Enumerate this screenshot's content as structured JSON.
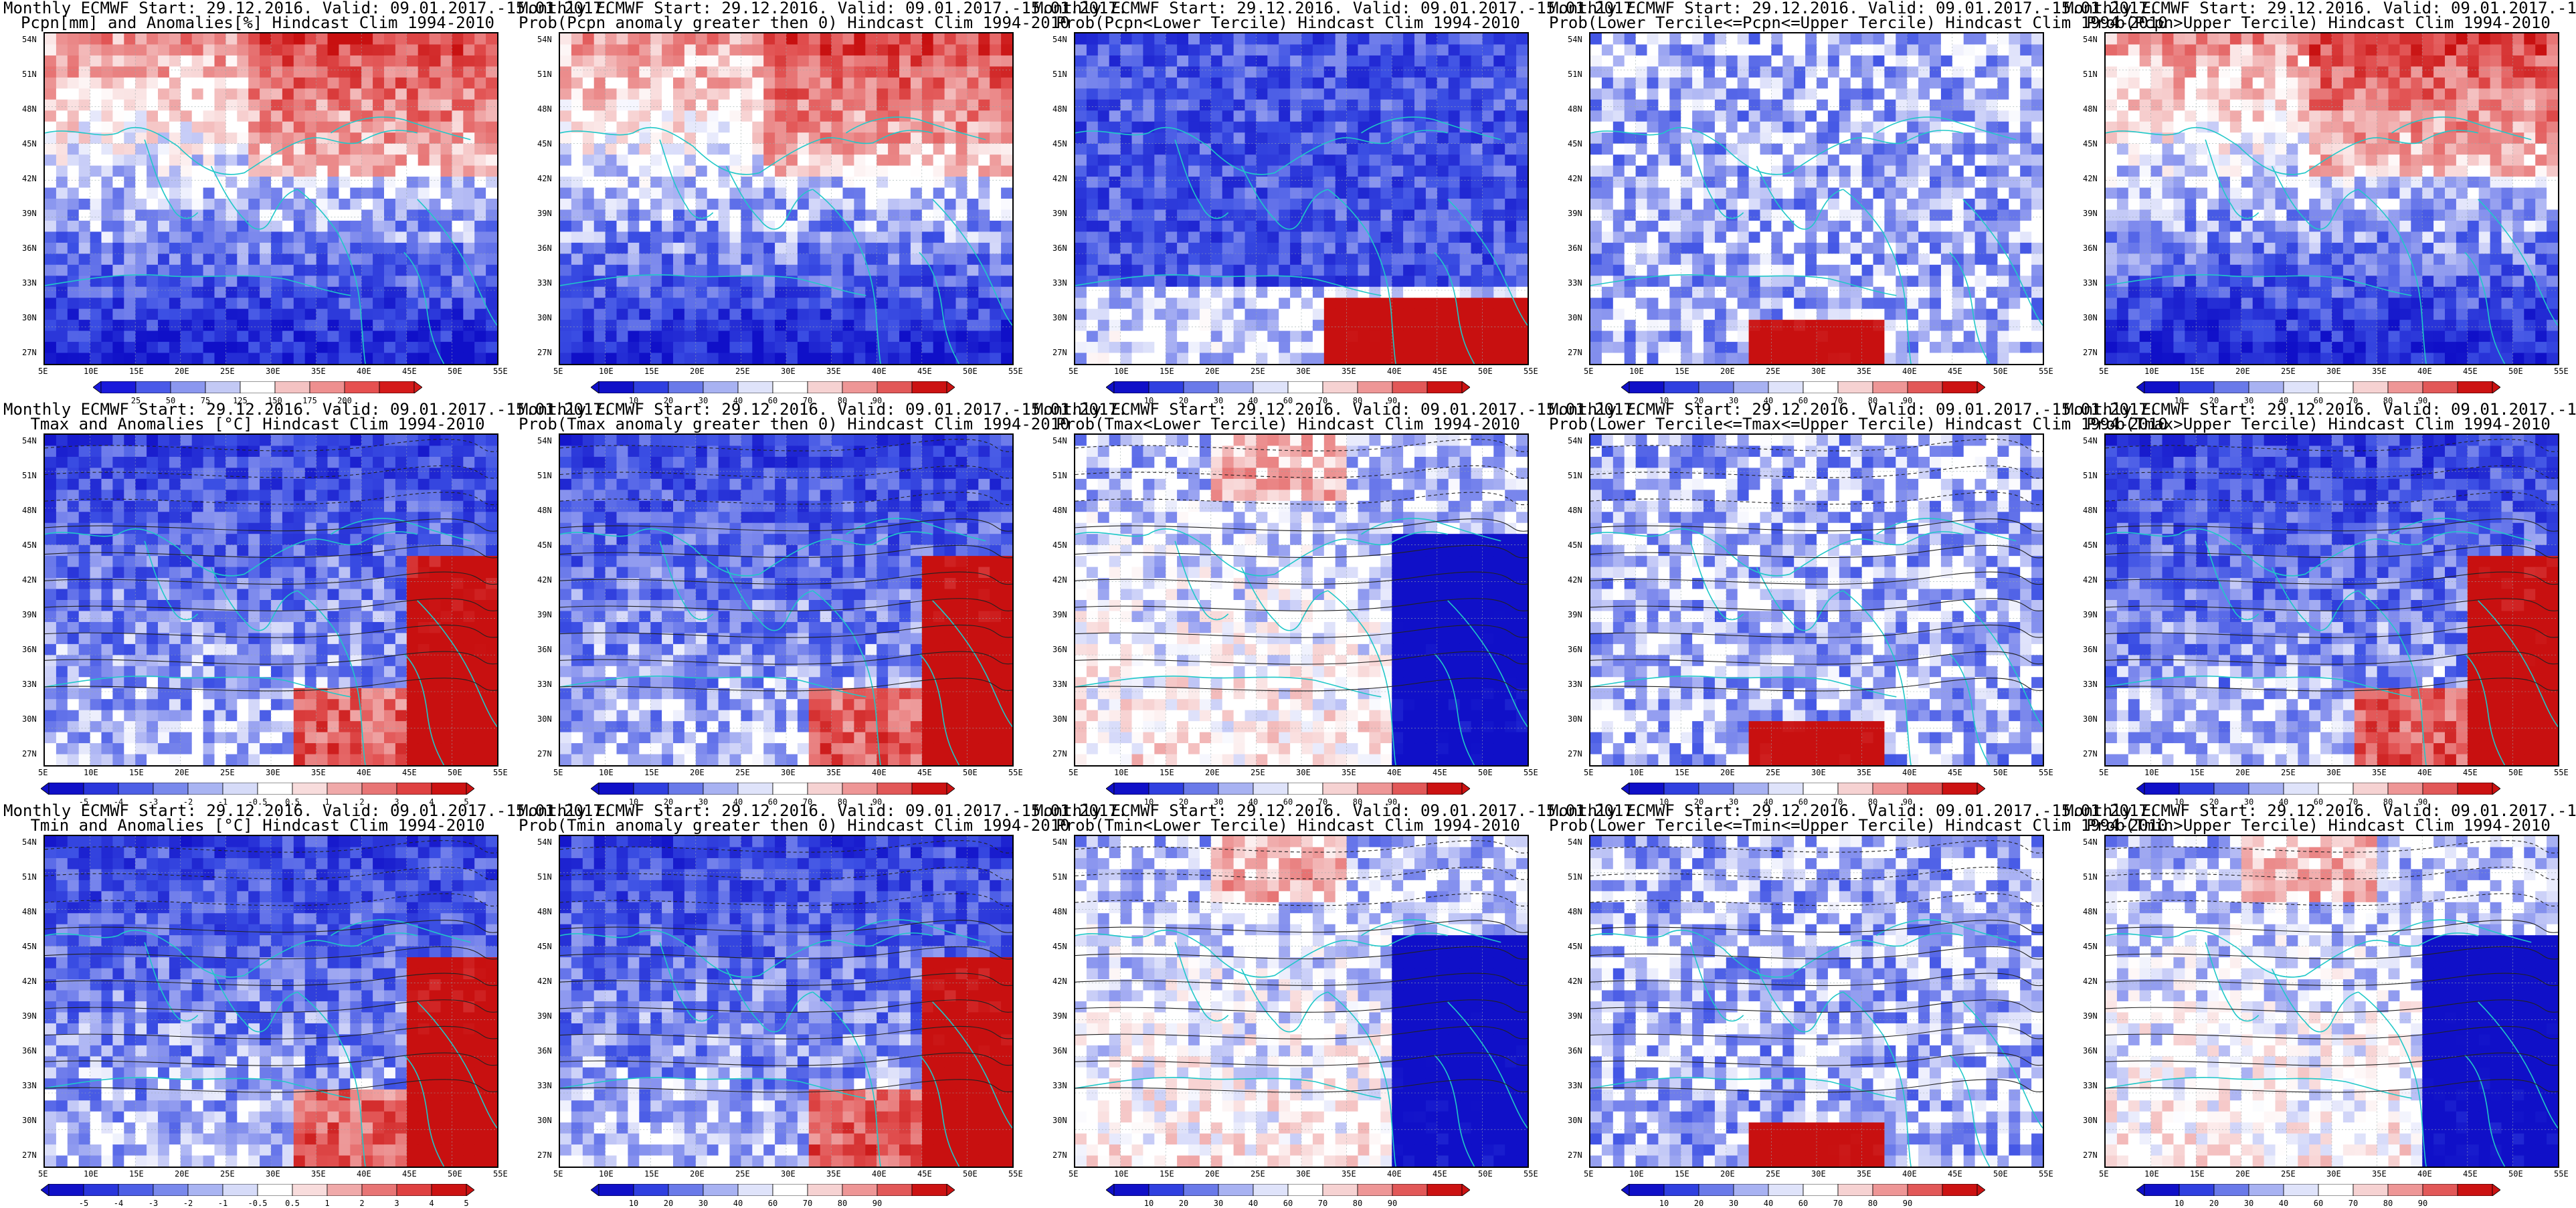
{
  "common": {
    "header": "Monthly ECMWF Start: 29.12.2016. Valid: 09.01.2017.-15.01.2017.",
    "lat_labels": [
      "54N",
      "51N",
      "48N",
      "45N",
      "42N",
      "39N",
      "36N",
      "33N",
      "30N",
      "27N"
    ],
    "lon_labels": [
      "5E",
      "10E",
      "15E",
      "20E",
      "25E",
      "30E",
      "35E",
      "40E",
      "45E",
      "50E",
      "55E"
    ]
  },
  "colorbars": {
    "pcpn_anom": {
      "labels": [
        "25",
        "50",
        "75",
        "125",
        "150",
        "175",
        "200"
      ],
      "colors": [
        "#1a1adb",
        "#4a5ae8",
        "#8b97ef",
        "#c3c9f5",
        "#ffffff",
        "#f4c3c3",
        "#ee8f8f",
        "#e65050",
        "#d41a1a"
      ]
    },
    "prob": {
      "labels": [
        "10",
        "20",
        "30",
        "40",
        "60",
        "70",
        "80",
        "90"
      ],
      "colors": [
        "#1010c8",
        "#3040e0",
        "#6a7ae9",
        "#a8b2f2",
        "#dfe3fa",
        "#ffffff",
        "#f6d2d2",
        "#ee9696",
        "#e25858",
        "#cc1212"
      ]
    },
    "temp_anom": {
      "labels": [
        "-5",
        "-4",
        "-3",
        "-2",
        "-1",
        "-0.5",
        "0.5",
        "1",
        "2",
        "3",
        "4",
        "5"
      ],
      "colors": [
        "#1010c8",
        "#2a36dc",
        "#4d5fe6",
        "#7989ec",
        "#a9b4f2",
        "#d6dbf8",
        "#ffffff",
        "#f8dcdc",
        "#f0a9a9",
        "#e87575",
        "#df4141",
        "#cc1212"
      ]
    }
  },
  "panels": [
    {
      "title": "Pcpn[mm] and Anomalies[%] Hindcast Clim 1994-2010",
      "colorbar": "pcpn_anom",
      "scheme": "wet"
    },
    {
      "title": "Prob(Pcpn anomaly greater then 0) Hindcast Clim 1994-2010",
      "colorbar": "prob",
      "scheme": "wet"
    },
    {
      "title": "Prob(Pcpn<Lower Tercile) Hindcast Clim 1994-2010",
      "colorbar": "prob",
      "scheme": "dry"
    },
    {
      "title": "Prob(Lower Tercile<=Pcpn<=Upper Tercile) Hindcast Clim 1994-2010",
      "colorbar": "prob",
      "scheme": "mid"
    },
    {
      "title": "Prob(Pcpn>Upper Tercile) Hindcast Clim 1994-2010",
      "colorbar": "prob",
      "scheme": "wet"
    },
    {
      "title": "Tmax and Anomalies [°C] Hindcast Clim 1994-2010",
      "colorbar": "temp_anom",
      "scheme": "warmeast"
    },
    {
      "title": "Prob(Tmax anomaly greater then 0) Hindcast Clim 1994-2010",
      "colorbar": "prob",
      "scheme": "warmeast"
    },
    {
      "title": "Prob(Tmax<Lower Tercile) Hindcast Clim 1994-2010",
      "colorbar": "prob",
      "scheme": "coldeast"
    },
    {
      "title": "Prob(Lower Tercile<=Tmax<=Upper Tercile) Hindcast Clim 1994-2010",
      "colorbar": "prob",
      "scheme": "mid"
    },
    {
      "title": "Prob(Tmax>Upper Tercile) Hindcast Clim 1994-2010",
      "colorbar": "prob",
      "scheme": "warmeast"
    },
    {
      "title": "Tmin and Anomalies [°C] Hindcast Clim 1994-2010",
      "colorbar": "temp_anom",
      "scheme": "warmeast"
    },
    {
      "title": "Prob(Tmin anomaly greater then 0) Hindcast Clim 1994-2010",
      "colorbar": "prob",
      "scheme": "warmeast"
    },
    {
      "title": "Prob(Tmin<Lower Tercile) Hindcast Clim 1994-2010",
      "colorbar": "prob",
      "scheme": "coldeast"
    },
    {
      "title": "Prob(Lower Tercile<=Tmin<=Upper Tercile) Hindcast Clim 1994-2010",
      "colorbar": "prob",
      "scheme": "mid"
    },
    {
      "title": "Prob(Tmin>Upper Tercile) Hindcast Clim 1994-2010",
      "colorbar": "prob",
      "scheme": "coldeast"
    }
  ]
}
